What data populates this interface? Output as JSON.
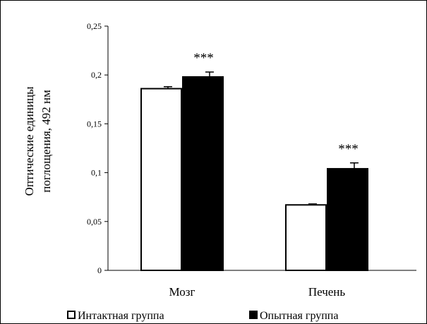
{
  "chart_data": {
    "type": "bar",
    "categories": [
      "Мозг",
      "Печень"
    ],
    "series": [
      {
        "name": "Интактная группа",
        "values": [
          0.186,
          0.067
        ],
        "errors": [
          0.002,
          0.001
        ],
        "color": "#ffffff",
        "annotations": [
          "",
          ""
        ]
      },
      {
        "name": "Опытная группа",
        "values": [
          0.198,
          0.104
        ],
        "errors": [
          0.005,
          0.006
        ],
        "color": "#000000",
        "annotations": [
          "***",
          "***"
        ]
      }
    ],
    "ylabel_lines": [
      "Оптические единицы",
      "поглощения, 492 нм"
    ],
    "ylim": [
      0,
      0.25
    ],
    "yticks": [
      0,
      0.05,
      0.1,
      0.15,
      0.2,
      0.25
    ],
    "ytick_labels": [
      "0",
      "0,05",
      "0,1",
      "0,15",
      "0,2",
      "0,25"
    ],
    "grid": false,
    "legend_position": "bottom"
  }
}
